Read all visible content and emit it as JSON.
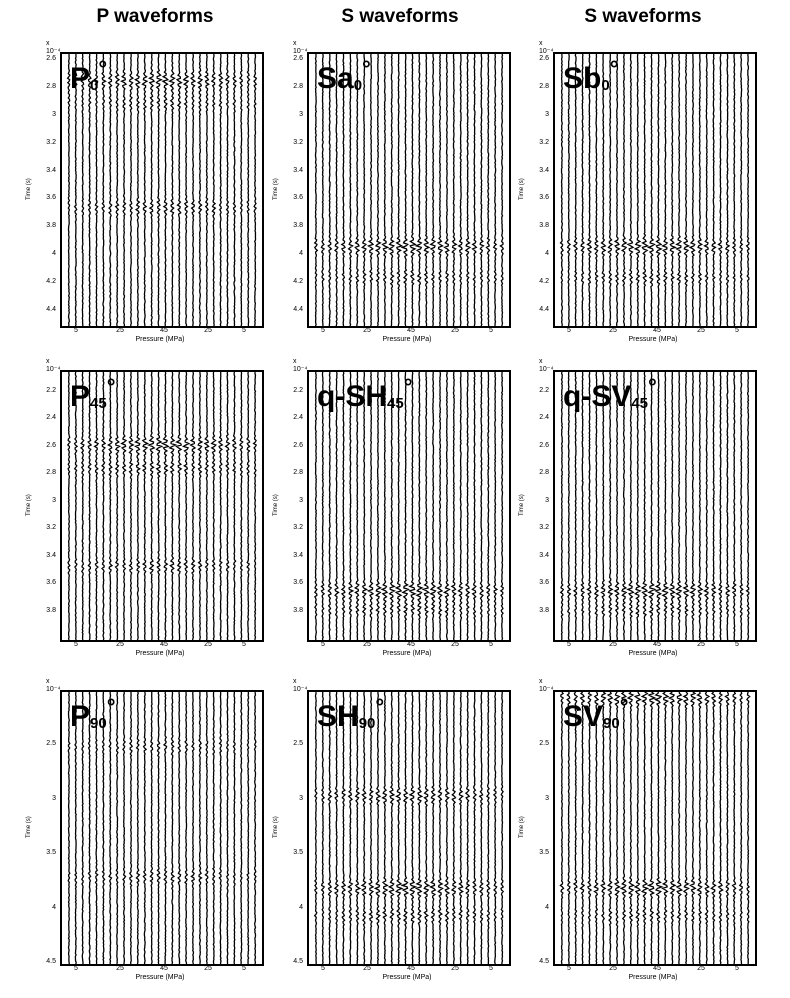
{
  "column_headers": [
    "P waveforms",
    "S waveforms",
    "S waveforms"
  ],
  "chart_data": [
    {
      "type": "line",
      "label_main": "P",
      "label_sub": "0",
      "label_deg": "°",
      "xlabel": "Pressure (MPa)",
      "ylabel": "Time (s)",
      "yexp": "x 10⁻⁴",
      "xticks": [
        "5",
        "25",
        "45",
        "25",
        "5"
      ],
      "yticks": [
        "2.6",
        "2.8",
        "3",
        "3.2",
        "3.4",
        "3.6",
        "3.8",
        "4",
        "4.2",
        "4.4"
      ],
      "ylim": [
        2.55,
        4.5
      ],
      "n_traces": 28,
      "arrivals": [
        {
          "time": 2.74,
          "strength": 0.9
        },
        {
          "time": 2.9,
          "strength": 0.5
        },
        {
          "time": 3.65,
          "strength": 0.6
        }
      ]
    },
    {
      "type": "line",
      "label_main": "Sa",
      "label_sub": "0",
      "label_deg": "°",
      "xlabel": "Pressure (MPa)",
      "ylabel": "Time (s)",
      "yexp": "x 10⁻⁴",
      "xticks": [
        "5",
        "25",
        "45",
        "25",
        "5"
      ],
      "yticks": [
        "2.6",
        "2.8",
        "3",
        "3.2",
        "3.4",
        "3.6",
        "3.8",
        "4",
        "4.2",
        "4.4"
      ],
      "ylim": [
        2.55,
        4.5
      ],
      "n_traces": 28,
      "arrivals": [
        {
          "time": 3.93,
          "strength": 1.0
        },
        {
          "time": 4.15,
          "strength": 0.5
        }
      ]
    },
    {
      "type": "line",
      "label_main": "Sb",
      "label_sub": "0",
      "label_deg": "°",
      "xlabel": "Pressure (MPa)",
      "ylabel": "Time (s)",
      "yexp": "x 10⁻⁴",
      "xticks": [
        "5",
        "25",
        "45",
        "25",
        "5"
      ],
      "yticks": [
        "2.6",
        "2.8",
        "3",
        "3.2",
        "3.4",
        "3.6",
        "3.8",
        "4",
        "4.2",
        "4.4"
      ],
      "ylim": [
        2.55,
        4.5
      ],
      "n_traces": 28,
      "arrivals": [
        {
          "time": 3.93,
          "strength": 1.0
        },
        {
          "time": 4.15,
          "strength": 0.5
        }
      ]
    },
    {
      "type": "line",
      "label_main": "P",
      "label_sub": "45",
      "label_deg": "°",
      "xlabel": "Pressure (MPa)",
      "ylabel": "Time (s)",
      "yexp": "x 10⁻⁴",
      "xticks": [
        "5",
        "25",
        "45",
        "25",
        "5"
      ],
      "yticks": [
        "2.2",
        "2.4",
        "2.6",
        "2.8",
        "3",
        "3.2",
        "3.4",
        "3.6",
        "3.8"
      ],
      "ylim": [
        2.05,
        4.0
      ],
      "n_traces": 28,
      "arrivals": [
        {
          "time": 2.58,
          "strength": 1.0
        },
        {
          "time": 2.75,
          "strength": 0.6
        },
        {
          "time": 3.46,
          "strength": 0.6
        }
      ]
    },
    {
      "type": "line",
      "label_main": "q-SH",
      "label_sub": "45",
      "label_deg": "°",
      "xlabel": "Pressure (MPa)",
      "ylabel": "Time (s)",
      "yexp": "x 10⁻⁴",
      "xticks": [
        "5",
        "25",
        "45",
        "25",
        "5"
      ],
      "yticks": [
        "2.2",
        "2.4",
        "2.6",
        "2.8",
        "3",
        "3.2",
        "3.4",
        "3.6",
        "3.8"
      ],
      "ylim": [
        2.05,
        4.0
      ],
      "n_traces": 28,
      "arrivals": [
        {
          "time": 3.64,
          "strength": 1.0
        },
        {
          "time": 3.78,
          "strength": 0.5
        }
      ]
    },
    {
      "type": "line",
      "label_main": "q-SV",
      "label_sub": "45",
      "label_deg": "°",
      "xlabel": "Pressure (MPa)",
      "ylabel": "Time (s)",
      "yexp": "x 10⁻⁴",
      "xticks": [
        "5",
        "25",
        "45",
        "25",
        "5"
      ],
      "yticks": [
        "2.2",
        "2.4",
        "2.6",
        "2.8",
        "3",
        "3.2",
        "3.4",
        "3.6",
        "3.8"
      ],
      "ylim": [
        2.05,
        4.0
      ],
      "n_traces": 28,
      "arrivals": [
        {
          "time": 3.64,
          "strength": 1.0
        },
        {
          "time": 3.78,
          "strength": 0.5
        }
      ]
    },
    {
      "type": "line",
      "label_main": "P",
      "label_sub": "90",
      "label_deg": "°",
      "xlabel": "Pressure (MPa)",
      "ylabel": "Time (s)",
      "yexp": "x 10⁻⁴",
      "xticks": [
        "5",
        "25",
        "45",
        "25",
        "5"
      ],
      "yticks": [
        "2.5",
        "3",
        "3.5",
        "4",
        "4.5"
      ],
      "ylim": [
        2.0,
        4.5
      ],
      "n_traces": 28,
      "arrivals": [
        {
          "time": 2.5,
          "strength": 0.4
        },
        {
          "time": 3.7,
          "strength": 0.5
        }
      ]
    },
    {
      "type": "line",
      "label_main": "SH",
      "label_sub": "90",
      "label_deg": "°",
      "xlabel": "Pressure (MPa)",
      "ylabel": "Time (s)",
      "yexp": "x 10⁻⁴",
      "xticks": [
        "5",
        "25",
        "45",
        "25",
        "5"
      ],
      "yticks": [
        "2.5",
        "3",
        "3.5",
        "4",
        "4.5"
      ],
      "ylim": [
        2.0,
        4.5
      ],
      "n_traces": 28,
      "arrivals": [
        {
          "time": 2.95,
          "strength": 0.8
        },
        {
          "time": 3.8,
          "strength": 1.0
        },
        {
          "time": 4.05,
          "strength": 0.6
        }
      ]
    },
    {
      "type": "line",
      "label_main": "SV",
      "label_sub": "90",
      "label_deg": "°",
      "xlabel": "Pressure (MPa)",
      "ylabel": "Time (s)",
      "yexp": "x 10⁻⁴",
      "xticks": [
        "5",
        "25",
        "45",
        "25",
        "5"
      ],
      "yticks": [
        "2.5",
        "3",
        "3.5",
        "4",
        "4.5"
      ],
      "ylim": [
        2.0,
        4.5
      ],
      "n_traces": 28,
      "arrivals": [
        {
          "time": 2.05,
          "strength": 1.0
        },
        {
          "time": 3.8,
          "strength": 1.0
        },
        {
          "time": 4.05,
          "strength": 0.5
        }
      ]
    }
  ]
}
